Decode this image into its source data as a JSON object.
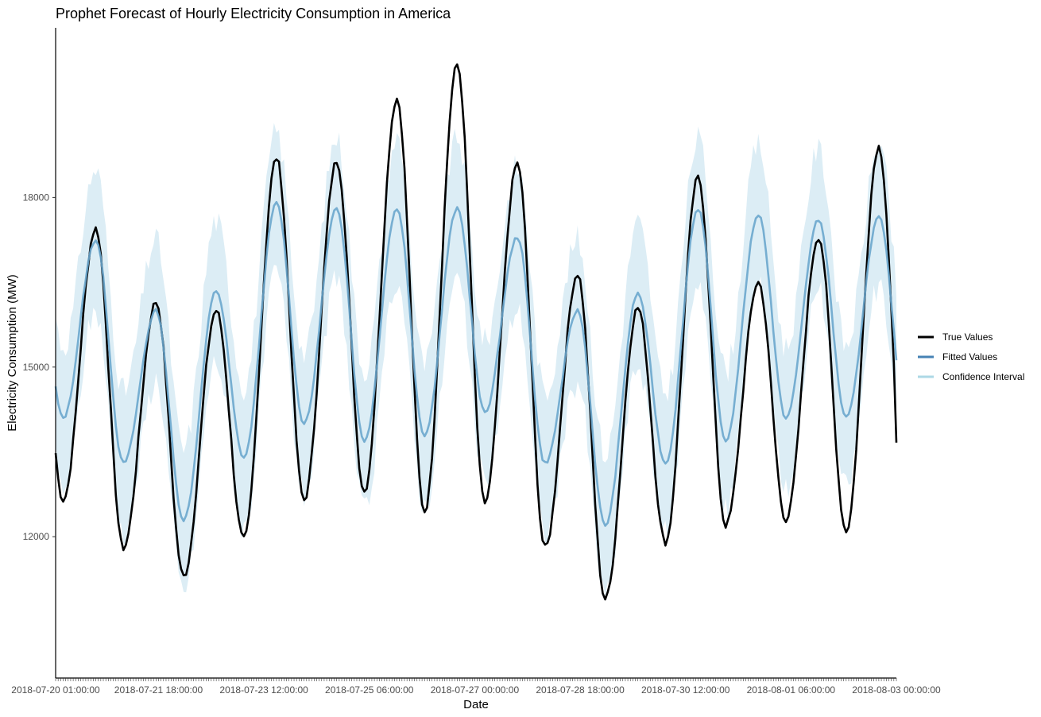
{
  "chart_data": {
    "type": "line",
    "title": "Prophet Forecast of Hourly Electricity Consumption in America",
    "xlabel": "Date",
    "ylabel": "Electricity Consumption (MW)",
    "ylim": [
      9500,
      21000
    ],
    "y_ticks": [
      12000,
      15000,
      18000
    ],
    "x_tick_labels": [
      "2018-07-20 01:00:00",
      "2018-07-21 18:00:00",
      "2018-07-23 12:00:00",
      "2018-07-25 06:00:00",
      "2018-07-27 00:00:00",
      "2018-07-28 18:00:00",
      "2018-07-30 12:00:00",
      "2018-08-01 06:00:00",
      "2018-08-03 00:00:00"
    ],
    "x_tick_offsets_hours": [
      0,
      41,
      83,
      125,
      167,
      209,
      251,
      293,
      335
    ],
    "x_range_hours": [
      0,
      335
    ],
    "grid": false,
    "legend_position": "right",
    "legend": [
      {
        "label": "True Values",
        "color": "#000000"
      },
      {
        "label": "Fitted Values",
        "color": "#4682b4"
      },
      {
        "label": "Confidence Interval",
        "color": "#add8e6"
      }
    ],
    "colors": {
      "true": "#000000",
      "fitted": "#6aa6cd",
      "band": "#dcedf5"
    },
    "daily_true_peaks": [
      17450,
      16150,
      16000,
      18700,
      18650,
      19750,
      20350,
      18600,
      16650,
      16050,
      18350,
      16500,
      17300,
      18900
    ],
    "daily_true_troughs": [
      12650,
      11800,
      11300,
      11950,
      12650,
      12800,
      12450,
      12600,
      11800,
      10900,
      11900,
      12200,
      12300,
      12100
    ],
    "daily_fitted_peaks": [
      17250,
      16000,
      16350,
      17900,
      17800,
      17800,
      17800,
      17300,
      16000,
      16300,
      17800,
      17700,
      17600,
      17650
    ],
    "daily_fitted_troughs": [
      14100,
      13300,
      12300,
      13400,
      14000,
      13700,
      13800,
      14200,
      13300,
      12200,
      13300,
      13700,
      14100,
      14100
    ],
    "series": [
      {
        "name": "True Values"
      },
      {
        "name": "Fitted Values"
      },
      {
        "name": "Confidence Interval"
      }
    ]
  }
}
